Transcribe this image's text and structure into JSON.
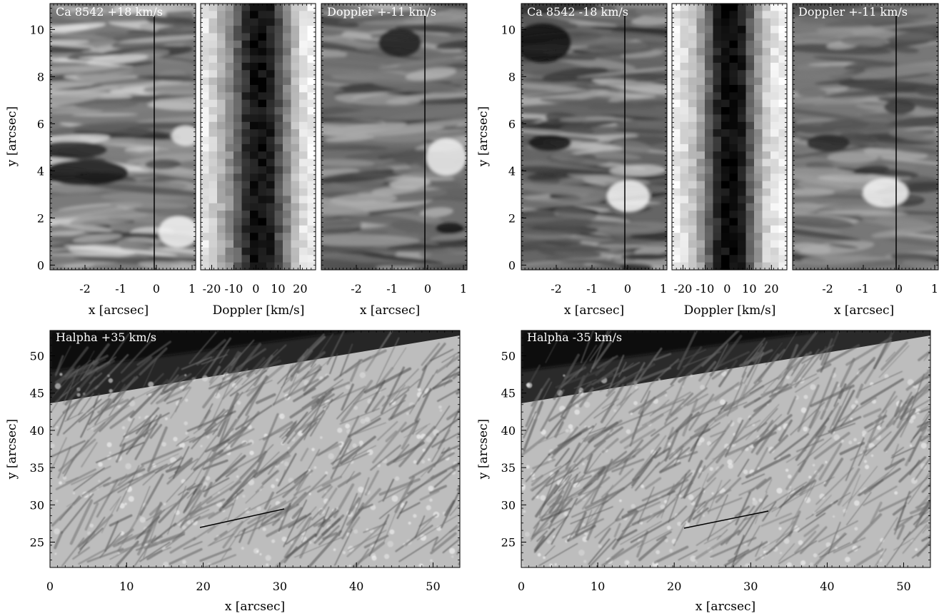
{
  "figure": {
    "panels": [
      {
        "id": "ca-plus-int",
        "title": "Ca 8542 +18 km/s",
        "xlabel": "x [arcsec]",
        "ylabel": "y [arcsec]",
        "xticks": [
          "-2",
          "-1",
          "0",
          "1"
        ],
        "yticks": [
          "0",
          "2",
          "4",
          "6",
          "8",
          "10"
        ]
      },
      {
        "id": "ca-plus-dop",
        "title": "",
        "xlabel": "Doppler [km/s]",
        "ylabel": "",
        "xticks": [
          "-20",
          "-10",
          "0",
          "10",
          "20"
        ],
        "yticks": []
      },
      {
        "id": "dop-plus",
        "title": "Doppler +-11 km/s",
        "xlabel": "x [arcsec]",
        "ylabel": "",
        "xticks": [
          "-2",
          "-1",
          "0",
          "1"
        ],
        "yticks": []
      },
      {
        "id": "ca-minus-int",
        "title": "Ca 8542 -18 km/s",
        "xlabel": "x [arcsec]",
        "ylabel": "y [arcsec]",
        "xticks": [
          "-2",
          "-1",
          "0",
          "1"
        ],
        "yticks": [
          "0",
          "2",
          "4",
          "6",
          "8",
          "10"
        ]
      },
      {
        "id": "ca-minus-dop",
        "title": "",
        "xlabel": "Doppler [km/s]",
        "ylabel": "",
        "xticks": [
          "-20",
          "-10",
          "0",
          "10",
          "20"
        ],
        "yticks": []
      },
      {
        "id": "dop-minus",
        "title": "Doppler +-11 km/s",
        "xlabel": "x [arcsec]",
        "ylabel": "",
        "xticks": [
          "-2",
          "-1",
          "0",
          "1"
        ],
        "yticks": []
      },
      {
        "id": "ha-plus",
        "title": "Halpha +35 km/s",
        "xlabel": "x [arcsec]",
        "ylabel": "y [arcsec]",
        "xticks": [
          "0",
          "10",
          "20",
          "30",
          "40",
          "50"
        ],
        "yticks": [
          "25",
          "30",
          "35",
          "40",
          "45",
          "50"
        ]
      },
      {
        "id": "ha-minus",
        "title": "Halpha -35 km/s",
        "xlabel": "x [arcsec]",
        "ylabel": "y [arcsec]",
        "xticks": [
          "0",
          "10",
          "20",
          "30",
          "40",
          "50"
        ],
        "yticks": [
          "25",
          "30",
          "35",
          "40",
          "45",
          "50"
        ]
      }
    ]
  }
}
